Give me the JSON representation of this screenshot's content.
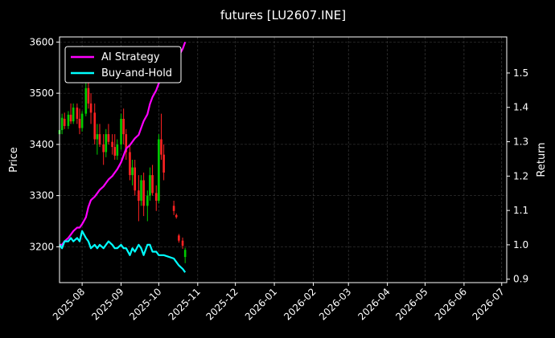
{
  "chart_data": {
    "type": "line",
    "title": "futures [LU2607.INE]",
    "xlabel": "",
    "ylabel_left": "Price",
    "ylabel_right": "Return",
    "x_range": [
      "2025-07-14",
      "2026-07-05"
    ],
    "ylim_left": [
      3130,
      3610
    ],
    "ylim_right": [
      0.89,
      1.605
    ],
    "grid": true,
    "legend_position": "upper-left",
    "x_ticks": [
      "2025-08",
      "2025-09",
      "2025-10",
      "2025-11",
      "2025-12",
      "2026-01",
      "2026-02",
      "2026-03",
      "2026-04",
      "2026-05",
      "2026-06",
      "2026-07"
    ],
    "y_ticks_left": [
      3200,
      3300,
      3400,
      3500,
      3600
    ],
    "y_ticks_right": [
      0.9,
      1.0,
      1.1,
      1.2,
      1.3,
      1.4,
      1.5
    ],
    "colors": {
      "ai": "#ff00ff",
      "bh": "#00ffff",
      "up": "#00cc00",
      "down": "#ff2222",
      "grid": "#444444",
      "axis": "#ffffff"
    },
    "series": [
      {
        "name": "AI Strategy",
        "axis": "right",
        "points": [
          [
            "2025-07-14",
            1.0
          ],
          [
            "2025-07-16",
            1.0
          ],
          [
            "2025-07-18",
            1.01
          ],
          [
            "2025-07-21",
            1.02
          ],
          [
            "2025-07-23",
            1.03
          ],
          [
            "2025-07-25",
            1.04
          ],
          [
            "2025-07-28",
            1.05
          ],
          [
            "2025-07-30",
            1.05
          ],
          [
            "2025-08-01",
            1.06
          ],
          [
            "2025-08-04",
            1.08
          ],
          [
            "2025-08-06",
            1.11
          ],
          [
            "2025-08-08",
            1.13
          ],
          [
            "2025-08-11",
            1.14
          ],
          [
            "2025-08-13",
            1.15
          ],
          [
            "2025-08-15",
            1.16
          ],
          [
            "2025-08-18",
            1.17
          ],
          [
            "2025-08-20",
            1.18
          ],
          [
            "2025-08-22",
            1.19
          ],
          [
            "2025-08-25",
            1.2
          ],
          [
            "2025-08-27",
            1.21
          ],
          [
            "2025-08-29",
            1.22
          ],
          [
            "2025-09-01",
            1.24
          ],
          [
            "2025-09-03",
            1.26
          ],
          [
            "2025-09-05",
            1.28
          ],
          [
            "2025-09-08",
            1.29
          ],
          [
            "2025-09-10",
            1.3
          ],
          [
            "2025-09-12",
            1.31
          ],
          [
            "2025-09-15",
            1.32
          ],
          [
            "2025-09-17",
            1.34
          ],
          [
            "2025-09-19",
            1.36
          ],
          [
            "2025-09-22",
            1.38
          ],
          [
            "2025-09-24",
            1.41
          ],
          [
            "2025-09-26",
            1.43
          ],
          [
            "2025-09-29",
            1.45
          ],
          [
            "2025-10-01",
            1.47
          ],
          [
            "2025-10-03",
            1.48
          ],
          [
            "2025-10-05",
            1.49
          ],
          [
            "2025-10-13",
            1.51
          ],
          [
            "2025-10-15",
            1.53
          ],
          [
            "2025-10-17",
            1.55
          ],
          [
            "2025-10-20",
            1.57
          ],
          [
            "2025-10-22",
            1.59
          ]
        ]
      },
      {
        "name": "Buy-and-Hold",
        "axis": "right",
        "points": [
          [
            "2025-07-14",
            1.0
          ],
          [
            "2025-07-16",
            0.99
          ],
          [
            "2025-07-18",
            1.01
          ],
          [
            "2025-07-21",
            1.01
          ],
          [
            "2025-07-23",
            1.02
          ],
          [
            "2025-07-25",
            1.01
          ],
          [
            "2025-07-28",
            1.02
          ],
          [
            "2025-07-30",
            1.01
          ],
          [
            "2025-08-01",
            1.04
          ],
          [
            "2025-08-04",
            1.02
          ],
          [
            "2025-08-06",
            1.01
          ],
          [
            "2025-08-08",
            0.99
          ],
          [
            "2025-08-11",
            1.0
          ],
          [
            "2025-08-13",
            0.99
          ],
          [
            "2025-08-15",
            1.0
          ],
          [
            "2025-08-18",
            0.99
          ],
          [
            "2025-08-20",
            1.0
          ],
          [
            "2025-08-22",
            1.01
          ],
          [
            "2025-08-25",
            1.0
          ],
          [
            "2025-08-27",
            0.99
          ],
          [
            "2025-08-29",
            0.99
          ],
          [
            "2025-09-01",
            1.0
          ],
          [
            "2025-09-03",
            0.99
          ],
          [
            "2025-09-05",
            0.99
          ],
          [
            "2025-09-08",
            0.97
          ],
          [
            "2025-09-10",
            0.99
          ],
          [
            "2025-09-12",
            0.98
          ],
          [
            "2025-09-15",
            1.0
          ],
          [
            "2025-09-17",
            0.99
          ],
          [
            "2025-09-19",
            0.97
          ],
          [
            "2025-09-22",
            1.0
          ],
          [
            "2025-09-24",
            1.0
          ],
          [
            "2025-09-26",
            0.98
          ],
          [
            "2025-09-29",
            0.98
          ],
          [
            "2025-10-01",
            0.97
          ],
          [
            "2025-10-05",
            0.97
          ],
          [
            "2025-10-13",
            0.96
          ],
          [
            "2025-10-15",
            0.95
          ],
          [
            "2025-10-17",
            0.94
          ],
          [
            "2025-10-20",
            0.93
          ],
          [
            "2025-10-22",
            0.92
          ]
        ]
      }
    ],
    "candles": [
      [
        "2025-07-14",
        3420,
        3433,
        3415,
        3428
      ],
      [
        "2025-07-16",
        3428,
        3460,
        3420,
        3452
      ],
      [
        "2025-07-18",
        3450,
        3462,
        3430,
        3436
      ],
      [
        "2025-07-21",
        3436,
        3465,
        3430,
        3458
      ],
      [
        "2025-07-23",
        3458,
        3480,
        3440,
        3445
      ],
      [
        "2025-07-25",
        3445,
        3480,
        3440,
        3472
      ],
      [
        "2025-07-28",
        3472,
        3480,
        3440,
        3450
      ],
      [
        "2025-07-30",
        3450,
        3470,
        3420,
        3432
      ],
      [
        "2025-08-01",
        3432,
        3465,
        3425,
        3460
      ],
      [
        "2025-08-04",
        3460,
        3520,
        3455,
        3510
      ],
      [
        "2025-08-06",
        3510,
        3545,
        3470,
        3480
      ],
      [
        "2025-08-08",
        3480,
        3500,
        3440,
        3462
      ],
      [
        "2025-08-11",
        3462,
        3480,
        3400,
        3410
      ],
      [
        "2025-08-13",
        3410,
        3440,
        3380,
        3420
      ],
      [
        "2025-08-15",
        3420,
        3440,
        3395,
        3400
      ],
      [
        "2025-08-18",
        3400,
        3420,
        3360,
        3385
      ],
      [
        "2025-08-20",
        3385,
        3430,
        3375,
        3420
      ],
      [
        "2025-08-22",
        3420,
        3440,
        3400,
        3405
      ],
      [
        "2025-08-25",
        3405,
        3420,
        3380,
        3395
      ],
      [
        "2025-08-27",
        3395,
        3420,
        3370,
        3378
      ],
      [
        "2025-08-29",
        3378,
        3410,
        3370,
        3400
      ],
      [
        "2025-09-01",
        3400,
        3460,
        3390,
        3450
      ],
      [
        "2025-09-03",
        3450,
        3470,
        3400,
        3420
      ],
      [
        "2025-09-05",
        3420,
        3430,
        3370,
        3385
      ],
      [
        "2025-09-08",
        3385,
        3400,
        3330,
        3340
      ],
      [
        "2025-09-10",
        3340,
        3370,
        3320,
        3355
      ],
      [
        "2025-09-12",
        3355,
        3370,
        3300,
        3310
      ],
      [
        "2025-09-15",
        3310,
        3340,
        3250,
        3290
      ],
      [
        "2025-09-17",
        3290,
        3340,
        3280,
        3330
      ],
      [
        "2025-09-19",
        3330,
        3345,
        3260,
        3280
      ],
      [
        "2025-09-22",
        3280,
        3310,
        3250,
        3300
      ],
      [
        "2025-09-24",
        3300,
        3355,
        3290,
        3340
      ],
      [
        "2025-09-26",
        3340,
        3360,
        3300,
        3305
      ],
      [
        "2025-09-29",
        3305,
        3320,
        3270,
        3290
      ],
      [
        "2025-10-01",
        3290,
        3420,
        3285,
        3410
      ],
      [
        "2025-10-03",
        3410,
        3460,
        3370,
        3380
      ],
      [
        "2025-10-05",
        3380,
        3400,
        3330,
        3345
      ],
      [
        "2025-10-13",
        3280,
        3290,
        3262,
        3270
      ],
      [
        "2025-10-15",
        3262,
        3265,
        3255,
        3258
      ],
      [
        "2025-10-17",
        3222,
        3225,
        3208,
        3212
      ],
      [
        "2025-10-20",
        3212,
        3218,
        3196,
        3202
      ],
      [
        "2025-10-22",
        3180,
        3198,
        3168,
        3194
      ]
    ],
    "legend": [
      "AI Strategy",
      "Buy-and-Hold"
    ]
  }
}
